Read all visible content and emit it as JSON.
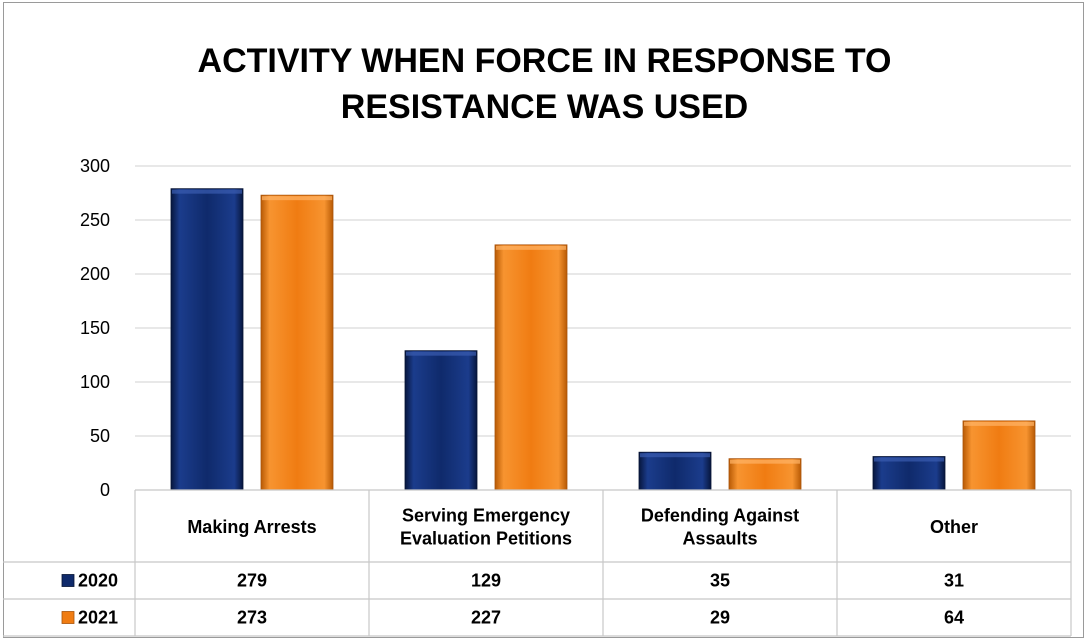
{
  "chart_data": {
    "type": "bar",
    "title_lines": [
      "ACTIVITY WHEN FORCE IN RESPONSE TO",
      "RESISTANCE WAS USED"
    ],
    "categories": [
      [
        "Making Arrests"
      ],
      [
        "Serving Emergency",
        "Evaluation Petitions"
      ],
      [
        "Defending Against",
        "Assaults"
      ],
      [
        "Other"
      ]
    ],
    "series": [
      {
        "name": "2020",
        "values": [
          279,
          129,
          35,
          31
        ]
      },
      {
        "name": "2021",
        "values": [
          273,
          227,
          29,
          64
        ]
      }
    ],
    "ylim": [
      0,
      300
    ],
    "yticks": [
      0,
      50,
      100,
      150,
      200,
      250,
      300
    ],
    "grid": true,
    "legend": "data-table",
    "xlabel": "",
    "ylabel": ""
  },
  "colors": {
    "series_2020": "#0f2a6b",
    "series_2021": "#f07c12",
    "gridline": "#d9d9d9",
    "table_border": "#c8c8c8"
  }
}
